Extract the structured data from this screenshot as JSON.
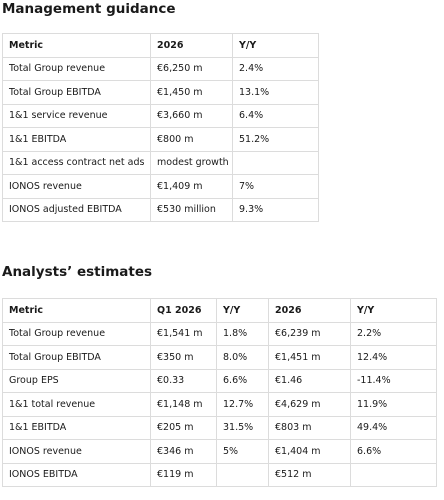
{
  "sections": [
    {
      "title": "Management guidance",
      "table": {
        "header": [
          "Metric",
          "2026",
          "Y/Y"
        ],
        "rows": [
          [
            "Total Group revenue",
            "€6,250 m",
            "2.4%"
          ],
          [
            "Total Group EBITDA",
            "€1,450 m",
            "13.1%"
          ],
          [
            "1&1 service revenue",
            "€3,660 m",
            "6.4%"
          ],
          [
            "1&1 EBITDA",
            "€800 m",
            "51.2%"
          ],
          [
            "1&1 access contract net ads",
            "modest growth",
            null
          ],
          [
            "IONOS revenue",
            "€1,409 m",
            "7%"
          ],
          [
            "IONOS adjusted EBITDA",
            "€530 million",
            "9.3%"
          ]
        ]
      }
    },
    {
      "title": "Analysts’ estimates",
      "table": {
        "header": [
          "Metric",
          "Q1 2026",
          "Y/Y",
          "2026",
          "Y/Y"
        ],
        "rows": [
          [
            "Total Group revenue",
            "€1,541 m",
            "1.8%",
            "€6,239 m",
            "2.2%"
          ],
          [
            "Total Group EBITDA",
            "€350 m",
            "8.0%",
            "€1,451 m",
            "12.4%"
          ],
          [
            "Group EPS",
            "€0.33",
            "6.6%",
            "€1.46",
            "-11.4%"
          ],
          [
            "1&1 total revenue",
            "€1,148 m",
            "12.7%",
            "€4,629 m",
            "11.9%"
          ],
          [
            "1&1 EBITDA",
            "€205 m",
            "31.5%",
            "€803 m",
            "49.4%"
          ],
          [
            "IONOS revenue",
            "€346 m",
            "5%",
            "€1,404 m",
            "6.6%"
          ],
          [
            "IONOS EBITDA",
            "€119 m",
            null,
            "€512 m",
            null
          ]
        ]
      }
    }
  ]
}
